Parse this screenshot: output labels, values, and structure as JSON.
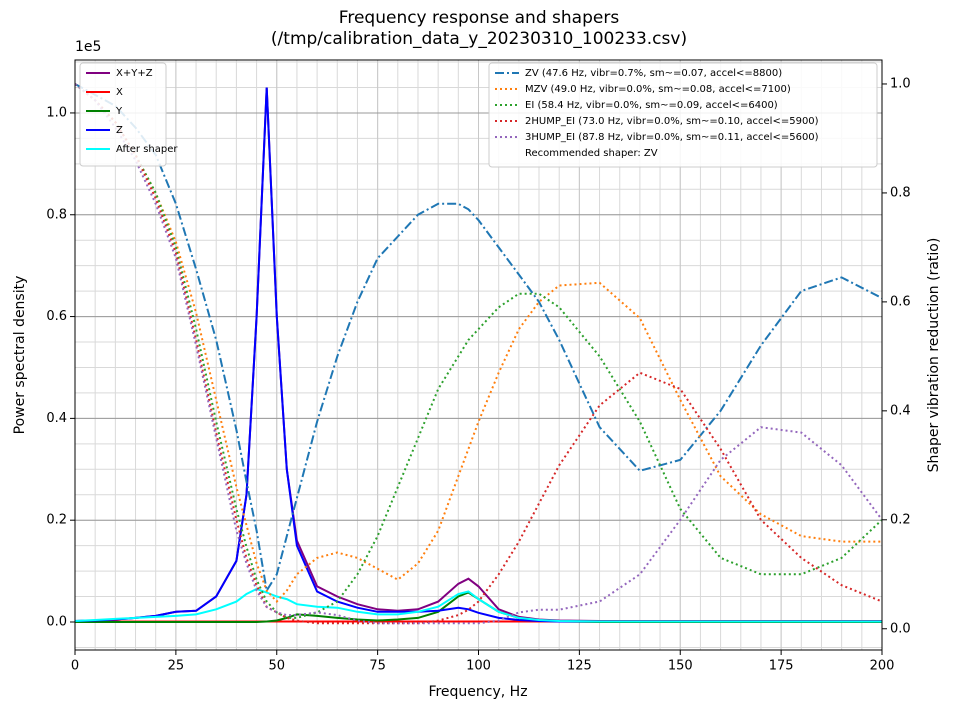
{
  "chart_data": {
    "type": "line",
    "title": "Frequency response and shapers",
    "subtitle": "(/tmp/calibration_data_y_20230310_100233.csv)",
    "x_label": "Frequency, Hz",
    "y_label": "Power spectral density",
    "y2_label": "Shaper vibration reduction (ratio)",
    "y_offset_label": "1e5",
    "grid": true,
    "legend_loc": "upper left",
    "y2_legend_loc": "upper right",
    "y2_legend_note": "Recommended shaper: ZV",
    "xlim": [
      0,
      200
    ],
    "xticks": [
      0,
      25,
      50,
      75,
      100,
      125,
      150,
      175,
      200
    ],
    "ylim": [
      -0.055,
      1.104
    ],
    "yticks": [
      {
        "value": 0,
        "label": "0.0"
      },
      0.2,
      0.4,
      0.6,
      0.8,
      {
        "value": 1,
        "label": "1.0"
      }
    ],
    "y2lim": [
      -0.039,
      1.044
    ],
    "y2ticks": [
      {
        "value": 0,
        "label": "0.0"
      },
      0.2,
      0.4,
      0.6,
      0.8,
      {
        "value": 1,
        "label": "1.0"
      }
    ],
    "x": [
      0,
      5,
      10,
      15,
      20,
      25,
      30,
      35,
      40,
      42.5,
      45,
      47.5,
      50,
      52.5,
      55,
      60,
      65,
      70,
      75,
      80,
      85,
      90,
      95,
      97.5,
      100,
      105,
      110,
      115,
      120,
      130,
      140,
      150,
      160,
      170,
      180,
      190,
      200
    ],
    "series": [
      {
        "name": "X+Y+Z",
        "color": "#800080",
        "linestyle": "solid",
        "axis": "y",
        "values": [
          0.002,
          0.003,
          0.005,
          0.008,
          0.012,
          0.02,
          0.022,
          0.05,
          0.12,
          0.25,
          0.6,
          1.05,
          0.6,
          0.3,
          0.16,
          0.07,
          0.05,
          0.035,
          0.025,
          0.022,
          0.025,
          0.04,
          0.075,
          0.085,
          0.07,
          0.025,
          0.01,
          0.005,
          0.003,
          0.002,
          0.002,
          0.002,
          0.002,
          0.002,
          0.002,
          0.002,
          0.002
        ]
      },
      {
        "name": "X",
        "color": "#ff0000",
        "linestyle": "solid",
        "axis": "y",
        "values": [
          0.001,
          0.001,
          0.001,
          0.001,
          0.001,
          0.001,
          0.001,
          0.001,
          0.001,
          0.001,
          0.001,
          0.001,
          0.001,
          0.001,
          0.001,
          0.001,
          0.001,
          0.001,
          0.001,
          0.001,
          0.001,
          0.001,
          0.001,
          0.001,
          0.001,
          0.001,
          0.001,
          0.001,
          0.001,
          0.001,
          0.001,
          0.001,
          0.001,
          0.001,
          0.001,
          0.001,
          0.001
        ]
      },
      {
        "name": "Y",
        "color": "#008000",
        "linestyle": "solid",
        "axis": "y",
        "values": [
          0,
          0,
          0,
          0,
          0,
          0,
          0,
          0,
          0,
          0,
          0,
          0.001,
          0.003,
          0.008,
          0.015,
          0.012,
          0.008,
          0.005,
          0.003,
          0.005,
          0.008,
          0.02,
          0.05,
          0.058,
          0.045,
          0.02,
          0.008,
          0.003,
          0.001,
          0,
          0,
          0,
          0,
          0,
          0,
          0,
          0
        ]
      },
      {
        "name": "Z",
        "color": "#0000ff",
        "linestyle": "solid",
        "axis": "y",
        "values": [
          0.002,
          0.003,
          0.005,
          0.008,
          0.012,
          0.02,
          0.022,
          0.05,
          0.12,
          0.25,
          0.6,
          1.05,
          0.6,
          0.3,
          0.15,
          0.06,
          0.04,
          0.028,
          0.02,
          0.02,
          0.02,
          0.022,
          0.028,
          0.025,
          0.018,
          0.008,
          0.004,
          0.002,
          0.001,
          0.001,
          0.001,
          0.001,
          0.001,
          0.001,
          0.001,
          0.001,
          0.001
        ]
      },
      {
        "name": "After shaper",
        "color": "#00ffff",
        "linestyle": "solid",
        "axis": "y",
        "values": [
          0.002,
          0.004,
          0.006,
          0.008,
          0.01,
          0.012,
          0.015,
          0.025,
          0.04,
          0.055,
          0.065,
          0.058,
          0.05,
          0.045,
          0.035,
          0.03,
          0.028,
          0.02,
          0.015,
          0.015,
          0.02,
          0.03,
          0.055,
          0.06,
          0.045,
          0.02,
          0.008,
          0.004,
          0.002,
          0.001,
          0.001,
          0.001,
          0.001,
          0.001,
          0.001,
          0.001,
          0.001
        ]
      },
      {
        "name": "ZV (47.6 Hz, vibr=0.7%, sm~=0.07, accel<=8800)",
        "color": "#1f77b4",
        "linestyle": "dashdot",
        "axis": "y2",
        "values": [
          1.0,
          0.98,
          0.96,
          0.92,
          0.87,
          0.78,
          0.66,
          0.53,
          0.365,
          0.27,
          0.18,
          0.07,
          0.1,
          0.17,
          0.24,
          0.38,
          0.5,
          0.6,
          0.68,
          0.72,
          0.76,
          0.78,
          0.78,
          0.77,
          0.75,
          0.7,
          0.65,
          0.6,
          0.53,
          0.37,
          0.29,
          0.31,
          0.4,
          0.52,
          0.62,
          0.645,
          0.607
        ]
      },
      {
        "name": "MZV (49.0 Hz, vibr=0.0%, sm~=0.08, accel<=7100)",
        "color": "#ff7f0e",
        "linestyle": "dotted",
        "axis": "y2",
        "values": [
          1.0,
          0.97,
          0.93,
          0.87,
          0.8,
          0.71,
          0.58,
          0.42,
          0.26,
          0.19,
          0.12,
          0.07,
          0.05,
          0.07,
          0.1,
          0.13,
          0.14,
          0.13,
          0.11,
          0.09,
          0.12,
          0.18,
          0.28,
          0.33,
          0.38,
          0.47,
          0.55,
          0.6,
          0.63,
          0.635,
          0.57,
          0.42,
          0.28,
          0.21,
          0.17,
          0.16,
          0.16
        ]
      },
      {
        "name": "EI (58.4 Hz, vibr=0.0%, sm~=0.09, accel<=6400)",
        "color": "#2ca02c",
        "linestyle": "dotted",
        "axis": "y2",
        "values": [
          1.0,
          0.97,
          0.93,
          0.87,
          0.8,
          0.7,
          0.55,
          0.38,
          0.22,
          0.15,
          0.09,
          0.05,
          0.03,
          0.02,
          0.02,
          0.03,
          0.05,
          0.1,
          0.17,
          0.26,
          0.35,
          0.44,
          0.5,
          0.53,
          0.55,
          0.59,
          0.615,
          0.615,
          0.59,
          0.5,
          0.38,
          0.22,
          0.13,
          0.1,
          0.1,
          0.13,
          0.2
        ]
      },
      {
        "name": "2HUMP_EI (73.0 Hz, vibr=0.0%, sm~=0.10, accel<=5900)",
        "color": "#d62728",
        "linestyle": "dotted",
        "axis": "y2",
        "values": [
          1.0,
          0.97,
          0.93,
          0.87,
          0.79,
          0.69,
          0.53,
          0.36,
          0.2,
          0.13,
          0.08,
          0.04,
          0.03,
          0.02,
          0.015,
          0.01,
          0.01,
          0.01,
          0.01,
          0.01,
          0.01,
          0.015,
          0.025,
          0.035,
          0.05,
          0.1,
          0.16,
          0.23,
          0.3,
          0.41,
          0.47,
          0.44,
          0.33,
          0.2,
          0.13,
          0.08,
          0.05
        ]
      },
      {
        "name": "3HUMP_EI (87.8 Hz, vibr=0.0%, sm~=0.11, accel<=5600)",
        "color": "#9467bd",
        "linestyle": "dotted",
        "axis": "y2",
        "values": [
          1.0,
          0.97,
          0.92,
          0.86,
          0.78,
          0.68,
          0.52,
          0.35,
          0.18,
          0.12,
          0.07,
          0.04,
          0.03,
          0.025,
          0.025,
          0.03,
          0.025,
          0.015,
          0.01,
          0.01,
          0.01,
          0.01,
          0.01,
          0.01,
          0.01,
          0.015,
          0.03,
          0.035,
          0.035,
          0.05,
          0.1,
          0.2,
          0.31,
          0.37,
          0.36,
          0.3,
          0.2
        ]
      }
    ]
  }
}
